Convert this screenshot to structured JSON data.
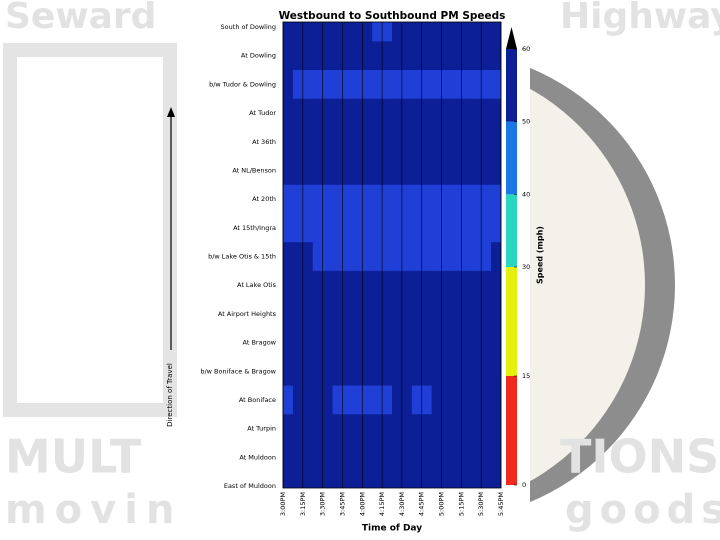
{
  "slide": {
    "watermark": [
      "Seward",
      "Highway",
      "MULT",
      "TIONS",
      "movin",
      "goods"
    ]
  },
  "chart_data": {
    "type": "contour",
    "title": "Westbound to Southbound PM Speeds",
    "x_label": "Time of Day",
    "y_label": "Direction of Travel",
    "colorbar_label": "Speed (mph)",
    "x": [
      "3:00PM",
      "3:15PM",
      "3:30PM",
      "3:45PM",
      "4:00PM",
      "4:15PM",
      "4:30PM",
      "4:45PM",
      "5:00PM",
      "5:15PM",
      "5:30PM",
      "5:45PM"
    ],
    "categories": [
      "South of Dowling",
      "At Dowling",
      "b/w Tudor & Dowling",
      "At Tudor",
      "At 36th",
      "At NL/Benson",
      "At 20th",
      "At 15th/Ingra",
      "b/w Lake Otis & 15th",
      "At Lake Otis",
      "At Airport Heights",
      "At Bragow",
      "b/w Boniface & Bragow",
      "At Boniface",
      "At Turpin",
      "At Muldoon",
      "East of Muldoon"
    ],
    "z": [
      [
        55,
        55,
        55,
        55,
        55,
        48,
        55,
        55,
        55,
        55,
        55,
        55
      ],
      [
        55,
        55,
        55,
        55,
        55,
        55,
        55,
        55,
        55,
        55,
        55,
        55
      ],
      [
        55,
        47,
        47,
        47,
        47,
        47,
        47,
        47,
        47,
        47,
        47,
        47
      ],
      [
        55,
        55,
        55,
        55,
        55,
        55,
        55,
        55,
        55,
        55,
        55,
        55
      ],
      [
        55,
        55,
        55,
        55,
        55,
        55,
        55,
        55,
        55,
        55,
        55,
        55
      ],
      [
        55,
        55,
        55,
        55,
        55,
        55,
        55,
        55,
        55,
        55,
        55,
        55
      ],
      [
        46,
        46,
        46,
        46,
        46,
        46,
        46,
        46,
        46,
        46,
        46,
        46
      ],
      [
        46,
        46,
        46,
        46,
        46,
        46,
        46,
        46,
        46,
        46,
        46,
        46
      ],
      [
        55,
        55,
        46,
        46,
        46,
        46,
        46,
        46,
        47,
        47,
        47,
        55
      ],
      [
        55,
        55,
        55,
        55,
        55,
        55,
        55,
        55,
        55,
        55,
        55,
        55
      ],
      [
        55,
        55,
        55,
        55,
        55,
        55,
        55,
        55,
        55,
        55,
        55,
        55
      ],
      [
        55,
        55,
        55,
        55,
        55,
        55,
        55,
        55,
        55,
        55,
        55,
        55
      ],
      [
        55,
        55,
        55,
        55,
        55,
        55,
        55,
        55,
        55,
        55,
        55,
        55
      ],
      [
        48,
        55,
        55,
        46,
        46,
        46,
        55,
        46,
        55,
        55,
        55,
        55
      ],
      [
        55,
        55,
        55,
        55,
        55,
        55,
        55,
        55,
        55,
        55,
        55,
        55
      ],
      [
        55,
        55,
        55,
        55,
        55,
        55,
        55,
        55,
        55,
        55,
        55,
        55
      ],
      [
        55,
        55,
        55,
        55,
        55,
        55,
        55,
        55,
        55,
        55,
        55,
        55
      ]
    ],
    "levels": [
      0,
      15,
      30,
      40,
      50,
      60
    ],
    "colors": [
      "#f0281e",
      "#e4f00c",
      "#2bd6c0",
      "#1a78e6",
      "#0c1f96"
    ],
    "blob_color": "#1f3fd6",
    "clim": [
      0,
      60
    ],
    "cticks": [
      0,
      15,
      30,
      40,
      50,
      60
    ]
  }
}
